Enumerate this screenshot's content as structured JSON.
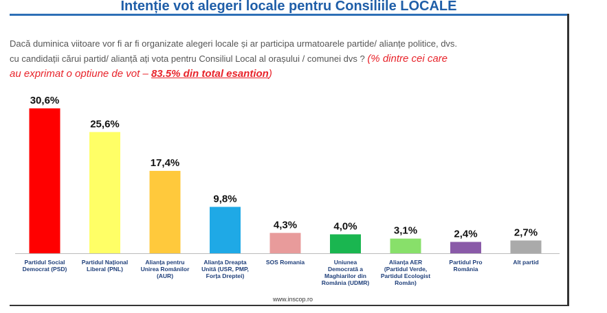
{
  "title": "Intenție vot alegeri locale pentru Consiliile LOCALE",
  "question": {
    "line1": "Dacă duminica viitoare vor fi ar fi organizate alegeri locale și ar participa urmatoarele partide/ alianțe politice, dvs.",
    "line2": "cu candidații cărui partid/ alianță ați vota pentru Consiliul Local al orașului / comunei dvs ?",
    "note_before": "(% dintre cei care",
    "note_line2_before": "au exprimat o optiune de vot – ",
    "note_underlined": "83.5% din total esantion",
    "note_after": ")"
  },
  "source": "www.inscop.ro",
  "chart_data": {
    "type": "bar",
    "title": "Intenție vot alegeri locale pentru Consiliile LOCALE",
    "xlabel": "",
    "ylabel": "",
    "ylim": [
      0,
      32
    ],
    "grid": false,
    "categories": [
      [
        "Partidul Social",
        "Democrat (PSD)"
      ],
      [
        "Partidul Național",
        "Liberal (PNL)"
      ],
      [
        "Alianța pentru",
        "Unirea Românilor",
        "(AUR)"
      ],
      [
        "Alianța Dreapta",
        "Unită (USR, PMP,",
        "Forța Dreptei)"
      ],
      [
        "SOS Romania"
      ],
      [
        "Uniunea",
        "Democrată a",
        "Maghiarilor din",
        "România (UDMR)"
      ],
      [
        "Alianța AER",
        "(Partidul Verde,",
        "Partidul Ecologist",
        "Român)"
      ],
      [
        "Partidul Pro",
        "România"
      ],
      [
        "Alt partid"
      ]
    ],
    "values": [
      30.6,
      25.6,
      17.4,
      9.8,
      4.3,
      4.0,
      3.1,
      2.4,
      2.7
    ],
    "value_labels": [
      "30,6%",
      "25,6%",
      "17,4%",
      "9,8%",
      "4,3%",
      "4,0%",
      "3,1%",
      "2,4%",
      "2,7%"
    ],
    "colors": [
      "#ff0000",
      "#ffff66",
      "#ffc93c",
      "#1fa9e6",
      "#e89b9b",
      "#1ab650",
      "#88e06a",
      "#8a5aa8",
      "#aaaaaa"
    ]
  }
}
